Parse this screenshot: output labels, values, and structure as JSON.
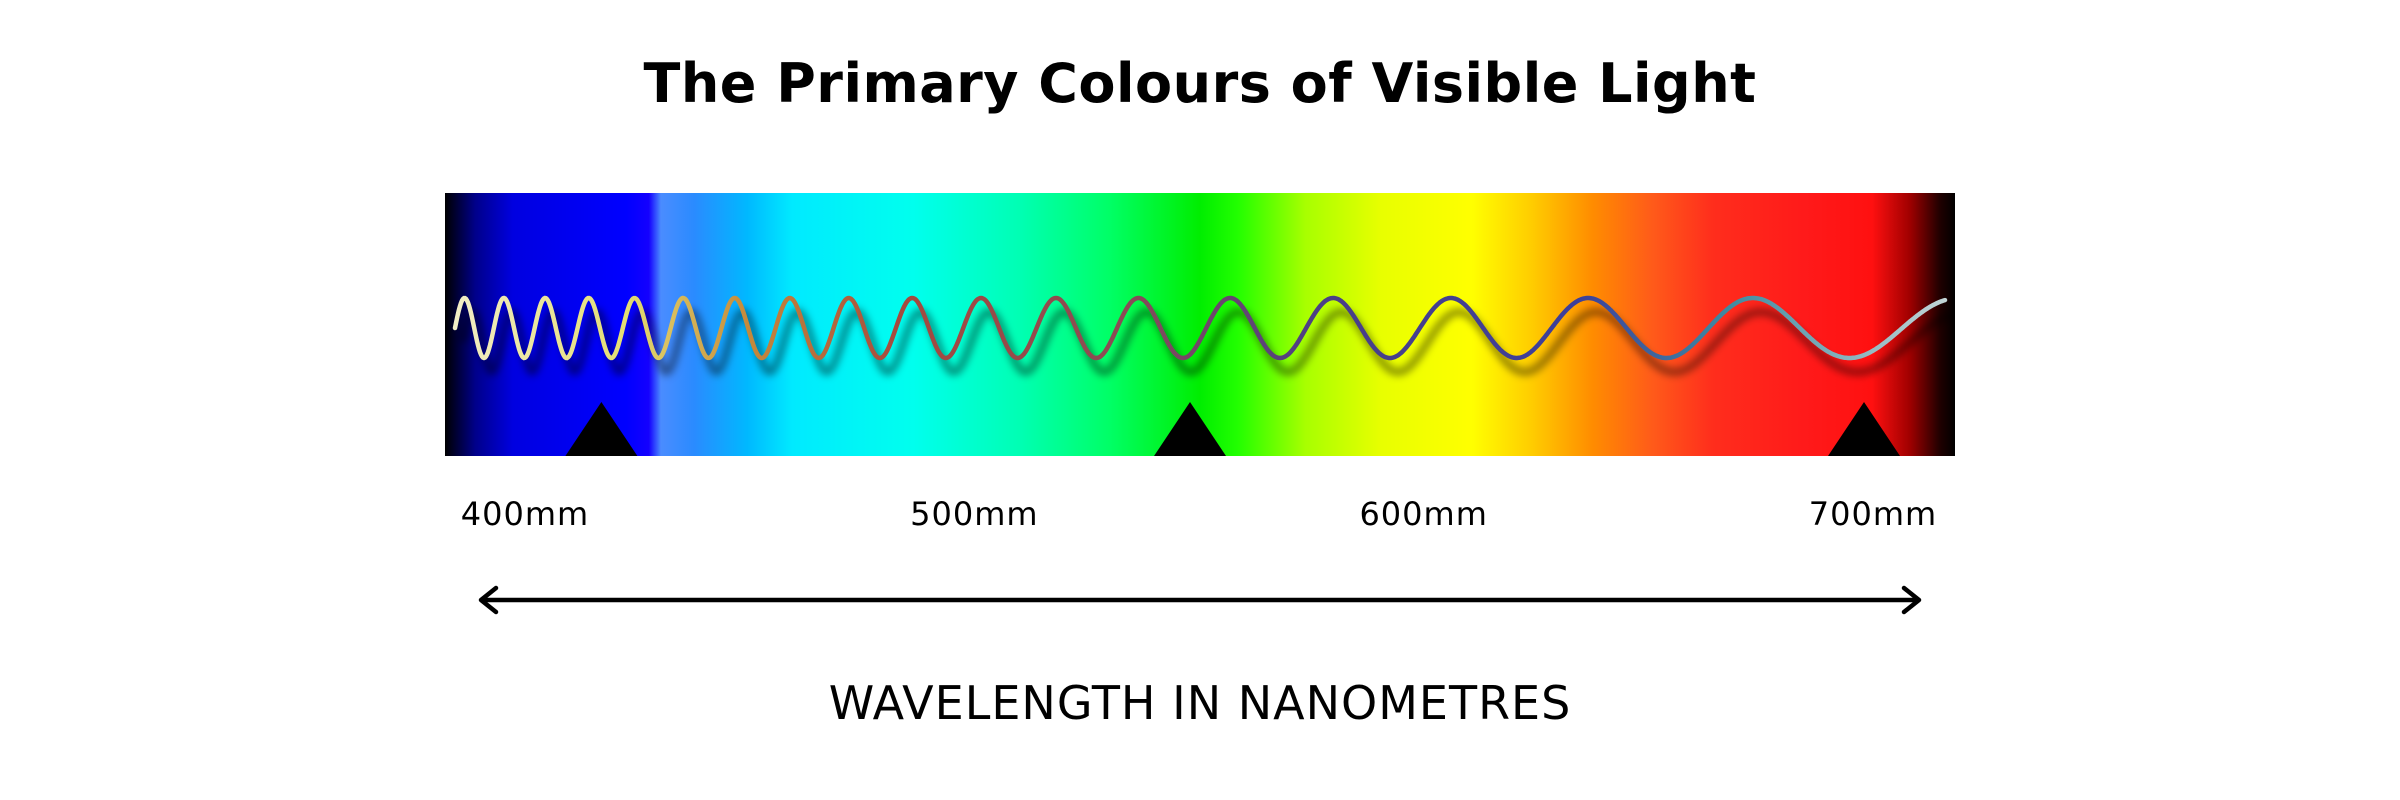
{
  "title": "The Primary Colours of Visible Light",
  "spectrum": {
    "colors": [
      "#000000",
      "#0000ff",
      "#00ffff",
      "#00ff00",
      "#ffff00",
      "#ff0000",
      "#000000"
    ],
    "markers": [
      {
        "name": "blue-primary-marker",
        "wavelength_nm": 417
      },
      {
        "name": "green-primary-marker",
        "wavelength_nm": 548
      },
      {
        "name": "red-primary-marker",
        "wavelength_nm": 698
      }
    ]
  },
  "ticks": [
    {
      "label": "400mm",
      "value": 400
    },
    {
      "label": "500mm",
      "value": 500
    },
    {
      "label": "600mm",
      "value": 600
    },
    {
      "label": "700mm",
      "value": 700
    }
  ],
  "axis": {
    "caption": "WAVELENGTH IN NANOMETRES",
    "arrow": "double-headed-arrow"
  }
}
